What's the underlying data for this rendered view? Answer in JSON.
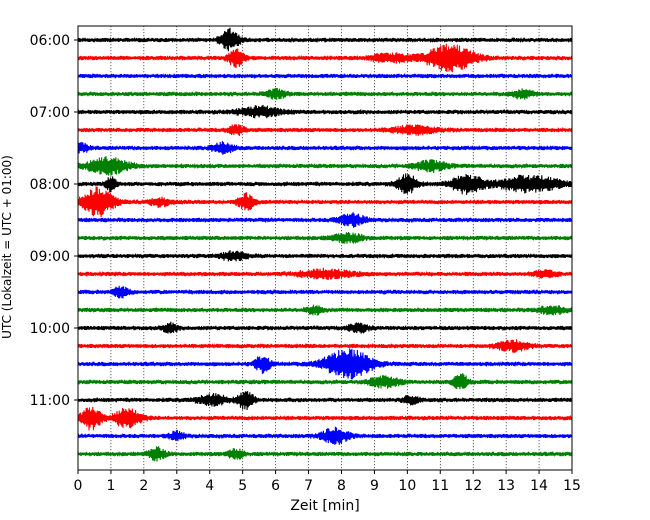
{
  "chart_data": {
    "type": "line",
    "title": "",
    "xlabel": "Zeit  [min]",
    "ylabel": "UTC (Lokalzeit = UTC + 01:00)",
    "xlim": [
      0,
      15
    ],
    "x_ticks": [
      "0",
      "1",
      "2",
      "3",
      "4",
      "5",
      "6",
      "7",
      "8",
      "9",
      "10",
      "11",
      "12",
      "13",
      "14",
      "15"
    ],
    "y_ticks": [
      "06:00",
      "07:00",
      "08:00",
      "09:00",
      "10:00",
      "11:00"
    ],
    "grid": true,
    "trace_interval_min": 15,
    "trace_colors": [
      "#000000",
      "#ff0000",
      "#0000ff",
      "#008000"
    ],
    "traces": [
      {
        "start": "06:00",
        "color": "#000000",
        "events": [
          [
            4.6,
            0.35,
            10
          ]
        ]
      },
      {
        "start": "06:15",
        "color": "#ff0000",
        "events": [
          [
            4.8,
            0.3,
            8
          ],
          [
            9.5,
            0.8,
            4
          ],
          [
            11.3,
            0.9,
            13
          ]
        ]
      },
      {
        "start": "06:30",
        "color": "#0000ff",
        "events": []
      },
      {
        "start": "06:45",
        "color": "#008000",
        "events": [
          [
            6.0,
            0.4,
            4
          ],
          [
            13.5,
            0.4,
            4
          ]
        ]
      },
      {
        "start": "07:00",
        "color": "#000000",
        "events": [
          [
            5.5,
            0.8,
            5
          ]
        ]
      },
      {
        "start": "07:15",
        "color": "#ff0000",
        "events": [
          [
            4.8,
            0.3,
            5
          ],
          [
            10.2,
            0.8,
            4
          ]
        ]
      },
      {
        "start": "07:30",
        "color": "#0000ff",
        "events": [
          [
            0.1,
            0.3,
            4
          ],
          [
            4.4,
            0.4,
            5
          ]
        ]
      },
      {
        "start": "07:45",
        "color": "#008000",
        "events": [
          [
            0.9,
            0.8,
            8
          ],
          [
            10.7,
            0.6,
            5
          ]
        ]
      },
      {
        "start": "08:00",
        "color": "#000000",
        "events": [
          [
            1.0,
            0.2,
            8
          ],
          [
            10.0,
            0.4,
            9
          ],
          [
            11.8,
            0.6,
            9
          ],
          [
            13.7,
            1.2,
            8
          ]
        ]
      },
      {
        "start": "08:15",
        "color": "#ff0000",
        "events": [
          [
            0.6,
            0.6,
            14
          ],
          [
            2.5,
            0.4,
            4
          ],
          [
            5.1,
            0.3,
            8
          ]
        ]
      },
      {
        "start": "08:30",
        "color": "#0000ff",
        "events": [
          [
            8.3,
            0.5,
            6
          ]
        ]
      },
      {
        "start": "08:45",
        "color": "#008000",
        "events": [
          [
            8.2,
            0.6,
            4
          ]
        ]
      },
      {
        "start": "09:00",
        "color": "#000000",
        "events": [
          [
            4.7,
            0.5,
            4
          ]
        ]
      },
      {
        "start": "09:15",
        "color": "#ff0000",
        "events": [
          [
            7.5,
            1.0,
            4
          ],
          [
            14.2,
            0.4,
            4
          ]
        ]
      },
      {
        "start": "09:30",
        "color": "#0000ff",
        "events": [
          [
            1.3,
            0.3,
            5
          ]
        ]
      },
      {
        "start": "09:45",
        "color": "#008000",
        "events": [
          [
            7.2,
            0.3,
            4
          ],
          [
            14.4,
            0.5,
            4
          ]
        ]
      },
      {
        "start": "10:00",
        "color": "#000000",
        "events": [
          [
            2.8,
            0.3,
            4
          ],
          [
            8.5,
            0.4,
            4
          ]
        ]
      },
      {
        "start": "10:15",
        "color": "#ff0000",
        "events": [
          [
            13.2,
            0.6,
            5
          ]
        ]
      },
      {
        "start": "10:30",
        "color": "#0000ff",
        "events": [
          [
            5.6,
            0.3,
            8
          ],
          [
            8.2,
            0.9,
            14
          ]
        ]
      },
      {
        "start": "10:45",
        "color": "#008000",
        "events": [
          [
            9.3,
            0.6,
            5
          ],
          [
            11.6,
            0.3,
            8
          ]
        ]
      },
      {
        "start": "11:00",
        "color": "#000000",
        "events": [
          [
            4.1,
            0.6,
            5
          ],
          [
            5.1,
            0.3,
            9
          ],
          [
            10.1,
            0.3,
            4
          ]
        ]
      },
      {
        "start": "11:15",
        "color": "#ff0000",
        "events": [
          [
            0.4,
            0.4,
            11
          ],
          [
            1.5,
            0.5,
            10
          ]
        ]
      },
      {
        "start": "11:30",
        "color": "#0000ff",
        "events": [
          [
            3.0,
            0.3,
            4
          ],
          [
            7.8,
            0.5,
            8
          ]
        ]
      },
      {
        "start": "11:45",
        "color": "#008000",
        "events": [
          [
            2.4,
            0.3,
            6
          ],
          [
            4.8,
            0.3,
            5
          ]
        ]
      }
    ]
  }
}
